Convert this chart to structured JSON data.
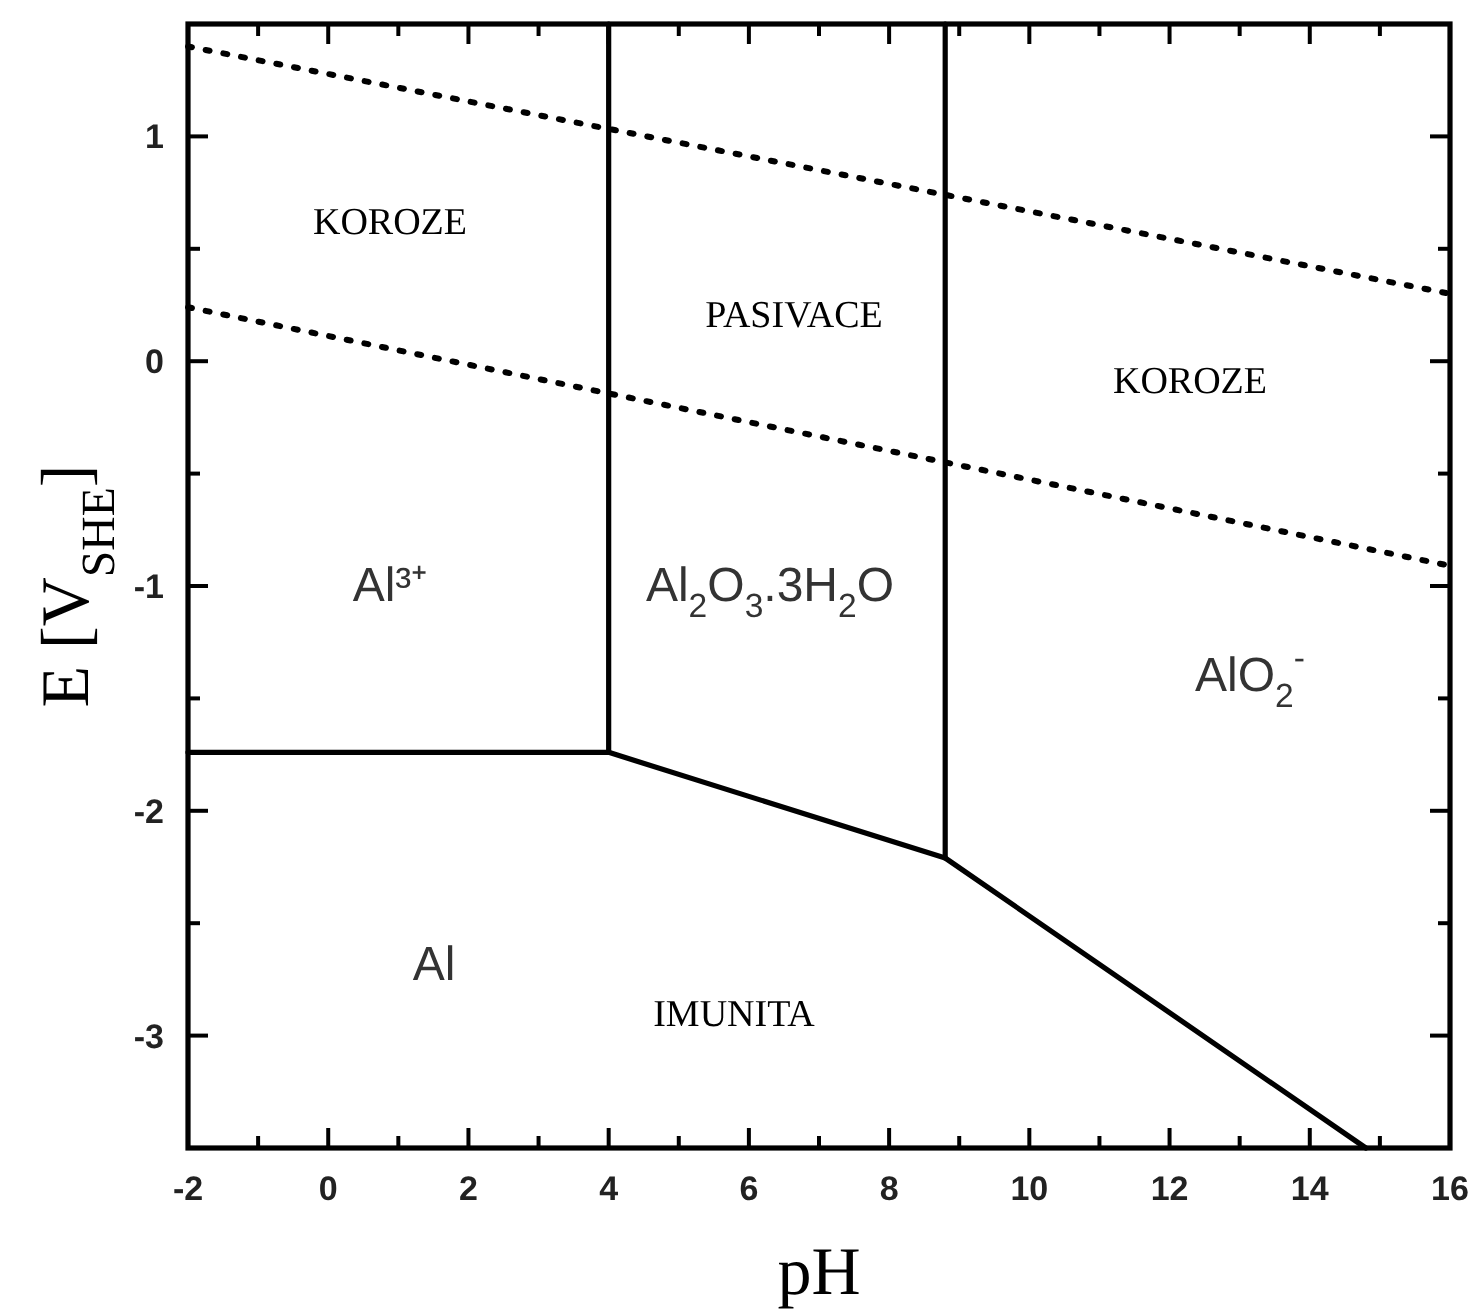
{
  "chart_data": {
    "type": "line",
    "xlabel": "pH",
    "ylabel": "E [V$_{SHE}$]",
    "xlim": [
      -2,
      16
    ],
    "ylim": [
      -3.5,
      1.5
    ],
    "xticks": [
      -2,
      {
        "value": -1,
        "label": null
      },
      0,
      {
        "value": 1,
        "label": null
      },
      2,
      {
        "value": 3,
        "label": null
      },
      4,
      {
        "value": 5,
        "label": null
      },
      6,
      {
        "value": 7,
        "label": null
      },
      8,
      {
        "value": 9,
        "label": null
      },
      10,
      {
        "value": 11,
        "label": null
      },
      12,
      {
        "value": 13,
        "label": null
      },
      14,
      {
        "value": 15,
        "label": null
      },
      16
    ],
    "yticks": [
      {
        "value": -3.5,
        "label": null
      },
      -3,
      {
        "value": -2.5,
        "label": null
      },
      -2,
      {
        "value": -1.5,
        "label": null
      },
      -1,
      {
        "value": -0.5,
        "label": null
      },
      0,
      {
        "value": 0.5,
        "label": null
      },
      1
    ],
    "marker": "none",
    "grid": false,
    "series": [
      {
        "color": "#000000",
        "line_style": "dotted",
        "x": [
          -2,
          16
        ],
        "values": [
          1.4,
          0.3
        ]
      },
      {
        "color": "#000000",
        "line_style": "dotted",
        "x": [
          -2,
          16
        ],
        "values": [
          0.24,
          -0.91
        ]
      },
      {
        "color": "#000000",
        "line_style": "solid",
        "x": [
          -2,
          4,
          8.8,
          14.8
        ],
        "values": [
          -1.74,
          -1.74,
          -2.21,
          -3.5
        ]
      },
      {
        "color": "#000000",
        "line_style": "solid",
        "x": [
          4,
          4
        ],
        "values": [
          -1.74,
          1.5
        ]
      },
      {
        "color": "#000000",
        "line_style": "solid",
        "x": [
          8.8,
          8.8
        ],
        "values": [
          -2.21,
          1.5
        ]
      }
    ],
    "annotations": [
      "KOROZE",
      "PASIVACE",
      "KOROZE",
      "Al³⁺",
      "Al$_{2}$O$_{3}$.3H$_{2}$O",
      "AlO$_{2}$$^{-}$",
      "Al",
      "IMUNITA"
    ]
  }
}
